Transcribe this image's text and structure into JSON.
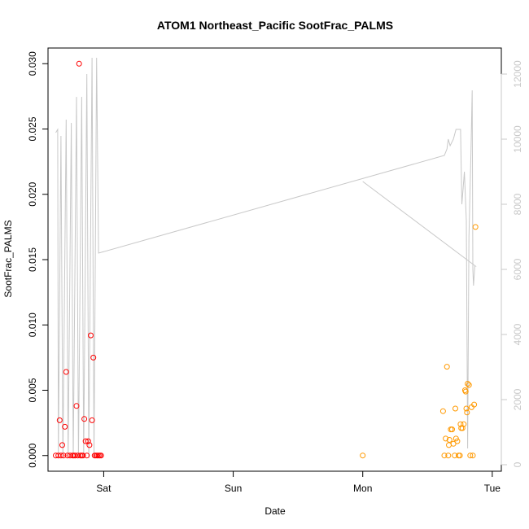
{
  "chart_data": {
    "type": "scatter",
    "title": "ATOM1 Northeast_Pacific SootFrac_PALMS",
    "xlabel": "Date",
    "ylabel": "SootFrac_PALMS",
    "x_ticks": [
      "Sat",
      "Sun",
      "Mon",
      "Tue"
    ],
    "x_ticks_days": [
      1,
      2,
      3,
      4
    ],
    "xlim_days": [
      0.57,
      4.07
    ],
    "ylim": [
      -0.0012,
      0.0312
    ],
    "y_ticks": [
      "0.000",
      "0.005",
      "0.010",
      "0.015",
      "0.020",
      "0.025",
      "0.030"
    ],
    "y2lim": [
      -200,
      12800
    ],
    "y2_ticks": [
      "0",
      "2000",
      "4000",
      "6000",
      "8000",
      "10000",
      "12000"
    ],
    "grid": false,
    "colors": {
      "series1": "#ff0000",
      "series2": "#ff9900",
      "altitude": "#c8c8c8",
      "axis": "#000000",
      "axis2": "#c8c8c8"
    },
    "series": [
      {
        "values": [
          [
            0.63,
            0
          ],
          [
            0.65,
            0
          ],
          [
            0.66,
            0.0027
          ],
          [
            0.67,
            0
          ],
          [
            0.68,
            0.0008
          ],
          [
            0.69,
            0
          ],
          [
            0.7,
            0.0022
          ],
          [
            0.71,
            0.0064
          ],
          [
            0.72,
            0
          ],
          [
            0.74,
            0
          ],
          [
            0.76,
            0
          ],
          [
            0.77,
            0
          ],
          [
            0.78,
            0
          ],
          [
            0.79,
            0.0038
          ],
          [
            0.8,
            0
          ],
          [
            0.81,
            0.03
          ],
          [
            0.82,
            0
          ],
          [
            0.83,
            0
          ],
          [
            0.84,
            0
          ],
          [
            0.85,
            0.0028
          ],
          [
            0.86,
            0.0011
          ],
          [
            0.87,
            0
          ],
          [
            0.88,
            0.0011
          ],
          [
            0.89,
            0.0008
          ],
          [
            0.9,
            0.0092
          ],
          [
            0.91,
            0.0027
          ],
          [
            0.92,
            0.0075
          ],
          [
            0.93,
            0
          ],
          [
            0.94,
            0
          ],
          [
            0.95,
            0
          ],
          [
            0.96,
            0
          ],
          [
            0.97,
            0
          ],
          [
            0.98,
            0
          ]
        ]
      },
      {
        "values": [
          [
            3,
            0
          ],
          [
            3.62,
            0.0034
          ],
          [
            3.63,
            0
          ],
          [
            3.64,
            0.0013
          ],
          [
            3.65,
            0.0068
          ],
          [
            3.66,
            0
          ],
          [
            3.665,
            0.0008
          ],
          [
            3.67,
            0.0012
          ],
          [
            3.68,
            0.002
          ],
          [
            3.69,
            0.002
          ],
          [
            3.7,
            0.0009
          ],
          [
            3.71,
            0
          ],
          [
            3.715,
            0.0036
          ],
          [
            3.72,
            0.0013
          ],
          [
            3.73,
            0.0011
          ],
          [
            3.74,
            0
          ],
          [
            3.75,
            0
          ],
          [
            3.755,
            0.0024
          ],
          [
            3.76,
            0.0021
          ],
          [
            3.77,
            0.0021
          ],
          [
            3.78,
            0.0024
          ],
          [
            3.79,
            0.005
          ],
          [
            3.795,
            0.0049
          ],
          [
            3.8,
            0.0036
          ],
          [
            3.805,
            0.0033
          ],
          [
            3.81,
            0.0055
          ],
          [
            3.82,
            0.0054
          ],
          [
            3.83,
            0
          ],
          [
            3.84,
            0.0037
          ],
          [
            3.85,
            0
          ],
          [
            3.86,
            0.0039
          ],
          [
            3.87,
            0.0175
          ]
        ]
      },
      {
        "axis": "right",
        "values": [
          [
            0.63,
            10200
          ],
          [
            0.645,
            10300
          ],
          [
            0.65,
            200
          ],
          [
            0.67,
            10100
          ],
          [
            0.685,
            200
          ],
          [
            0.71,
            10600
          ],
          [
            0.725,
            200
          ],
          [
            0.75,
            10500
          ],
          [
            0.765,
            200
          ],
          [
            0.79,
            11300
          ],
          [
            0.805,
            200
          ],
          [
            0.83,
            11300
          ],
          [
            0.845,
            200
          ],
          [
            0.87,
            12000
          ],
          [
            0.885,
            200
          ],
          [
            0.91,
            12500
          ],
          [
            0.925,
            200
          ],
          [
            0.945,
            12500
          ],
          [
            0.96,
            6500
          ],
          [
            3.63,
            9500
          ],
          [
            3.65,
            9700
          ],
          [
            3.66,
            10000
          ],
          [
            3.675,
            9800
          ],
          [
            3.7,
            10000
          ],
          [
            3.72,
            10300
          ],
          [
            3.755,
            10300
          ],
          [
            3.765,
            8000
          ],
          [
            3.775,
            8500
          ],
          [
            3.785,
            9000
          ],
          [
            3.8,
            7500
          ],
          [
            3.81,
            500
          ],
          [
            3.82,
            7000
          ],
          [
            3.835,
            9500
          ],
          [
            3.845,
            11500
          ],
          [
            3.85,
            6000
          ],
          [
            3.855,
            5500
          ],
          [
            3.865,
            6100
          ],
          [
            3.87,
            6100
          ],
          [
            3.0,
            8700
          ]
        ]
      }
    ]
  }
}
